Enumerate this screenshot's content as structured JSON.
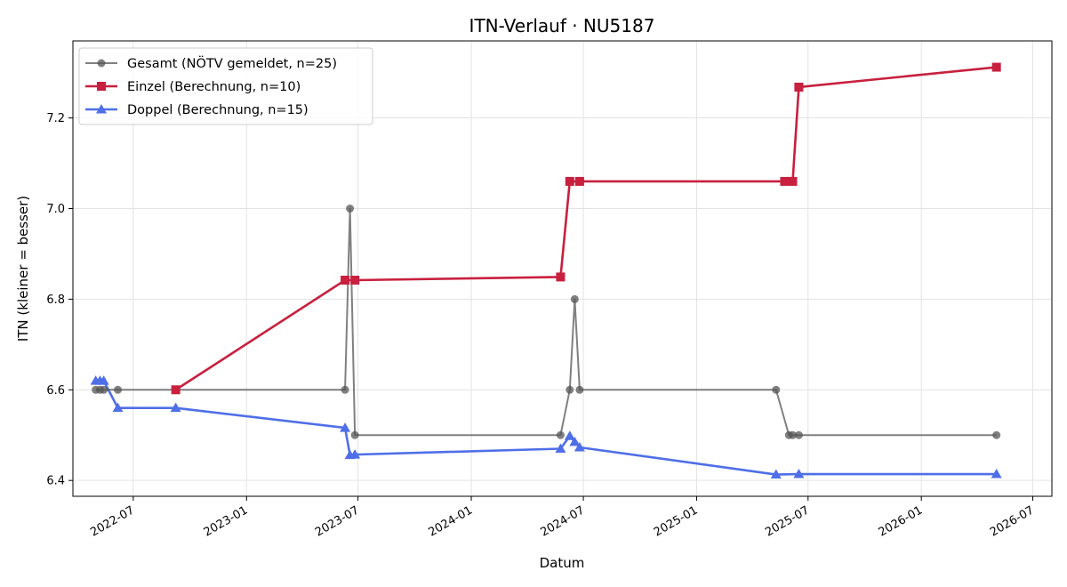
{
  "chart_data": {
    "type": "line",
    "title": "ITN-Verlauf · NU5187",
    "xlabel": "Datum",
    "ylabel": "ITN  (kleiner = besser)",
    "xlim": [
      "2022-03-25",
      "2026-08-01"
    ],
    "ylim": [
      6.365,
      7.37
    ],
    "grid": true,
    "legend_position": "top-left",
    "x_ticks": [
      "2022-07",
      "2023-01",
      "2023-07",
      "2024-01",
      "2024-07",
      "2025-01",
      "2025-07",
      "2026-01",
      "2026-07"
    ],
    "y_ticks": [
      "6.4",
      "6.6",
      "6.8",
      "7.0",
      "7.2"
    ],
    "series": [
      {
        "name": "Gesamt (NÖTV gemeldet, n=25)",
        "color": "#555555",
        "marker": "circle",
        "points": [
          {
            "x": "2022-05-01",
            "y": 6.6
          },
          {
            "x": "2022-05-08",
            "y": 6.6
          },
          {
            "x": "2022-05-14",
            "y": 6.6
          },
          {
            "x": "2022-06-06",
            "y": 6.6
          },
          {
            "x": "2023-06-10",
            "y": 6.6
          },
          {
            "x": "2023-06-18",
            "y": 7.0
          },
          {
            "x": "2023-06-26",
            "y": 6.5
          },
          {
            "x": "2024-05-25",
            "y": 6.5
          },
          {
            "x": "2024-06-09",
            "y": 6.6
          },
          {
            "x": "2024-06-17",
            "y": 6.8
          },
          {
            "x": "2024-06-25",
            "y": 6.6
          },
          {
            "x": "2025-05-10",
            "y": 6.6
          },
          {
            "x": "2025-05-31",
            "y": 6.5
          },
          {
            "x": "2025-06-06",
            "y": 6.5
          },
          {
            "x": "2025-06-16",
            "y": 6.5
          },
          {
            "x": "2026-05-03",
            "y": 6.5
          }
        ]
      },
      {
        "name": "Einzel (Berechnung, n=10)",
        "color": "#c8203e",
        "marker": "square",
        "points": [
          {
            "x": "2022-09-08",
            "y": 6.6
          },
          {
            "x": "2023-06-10",
            "y": 6.842
          },
          {
            "x": "2023-06-26",
            "y": 6.842
          },
          {
            "x": "2024-05-25",
            "y": 6.849
          },
          {
            "x": "2024-06-09",
            "y": 7.06
          },
          {
            "x": "2024-06-25",
            "y": 7.06
          },
          {
            "x": "2025-05-24",
            "y": 7.06
          },
          {
            "x": "2025-06-06",
            "y": 7.06
          },
          {
            "x": "2025-06-16",
            "y": 7.268
          },
          {
            "x": "2026-05-03",
            "y": 7.312
          }
        ]
      },
      {
        "name": "Doppel (Berechnung, n=15)",
        "color": "#4f6fe8",
        "marker": "triangle",
        "points": [
          {
            "x": "2022-05-01",
            "y": 6.62
          },
          {
            "x": "2022-05-08",
            "y": 6.62
          },
          {
            "x": "2022-05-14",
            "y": 6.62
          },
          {
            "x": "2022-06-06",
            "y": 6.56
          },
          {
            "x": "2022-09-08",
            "y": 6.56
          },
          {
            "x": "2023-06-10",
            "y": 6.516
          },
          {
            "x": "2023-06-18",
            "y": 6.456
          },
          {
            "x": "2023-06-26",
            "y": 6.457
          },
          {
            "x": "2024-05-25",
            "y": 6.47
          },
          {
            "x": "2024-06-09",
            "y": 6.498
          },
          {
            "x": "2024-06-17",
            "y": 6.485
          },
          {
            "x": "2024-06-25",
            "y": 6.473
          },
          {
            "x": "2025-05-10",
            "y": 6.413
          },
          {
            "x": "2025-06-16",
            "y": 6.414
          },
          {
            "x": "2026-05-03",
            "y": 6.414
          }
        ]
      }
    ]
  }
}
